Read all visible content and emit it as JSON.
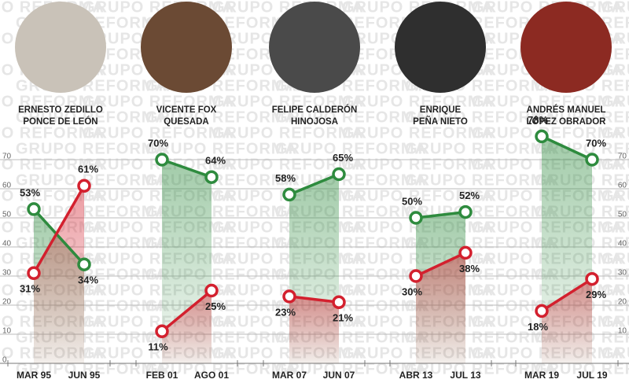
{
  "watermark": "GRUPO REFORMA",
  "chart_data": [
    {
      "type": "line",
      "title_lines": [
        "ERNESTO ZEDILLO",
        "PONCE DE LEÓN"
      ],
      "categories": [
        "MAR 95",
        "JUN 95"
      ],
      "series": [
        {
          "color": "#2e8b3e",
          "values": [
            53,
            34
          ],
          "value_labels": [
            "53%",
            "34%"
          ]
        },
        {
          "color": "#d3202e",
          "values": [
            31,
            61
          ],
          "value_labels": [
            "31%",
            "61%"
          ]
        }
      ],
      "ylim": [
        0,
        80
      ],
      "yticks": [
        0,
        10,
        20,
        30,
        40,
        50,
        60,
        70
      ],
      "grid": true
    },
    {
      "type": "line",
      "title_lines": [
        "VICENTE FOX",
        "QUESADA"
      ],
      "categories": [
        "FEB 01",
        "AGO 01"
      ],
      "series": [
        {
          "color": "#2e8b3e",
          "values": [
            70,
            64
          ],
          "value_labels": [
            "70%",
            "64%"
          ]
        },
        {
          "color": "#d3202e",
          "values": [
            11,
            25
          ],
          "value_labels": [
            "11%",
            "25%"
          ]
        }
      ],
      "ylim": [
        0,
        80
      ]
    },
    {
      "type": "line",
      "title_lines": [
        "FELIPE CALDERÓN",
        "HINOJOSA"
      ],
      "categories": [
        "MAR 07",
        "JUN 07"
      ],
      "series": [
        {
          "color": "#2e8b3e",
          "values": [
            58,
            65
          ],
          "value_labels": [
            "58%",
            "65%"
          ]
        },
        {
          "color": "#d3202e",
          "values": [
            23,
            21
          ],
          "value_labels": [
            "23%",
            "21%"
          ]
        }
      ],
      "ylim": [
        0,
        80
      ]
    },
    {
      "type": "line",
      "title_lines": [
        "ENRIQUE",
        "PEÑA NIETO"
      ],
      "categories": [
        "ABR 13",
        "JUL 13"
      ],
      "series": [
        {
          "color": "#2e8b3e",
          "values": [
            50,
            52
          ],
          "value_labels": [
            "50%",
            "52%"
          ]
        },
        {
          "color": "#d3202e",
          "values": [
            30,
            38
          ],
          "value_labels": [
            "30%",
            "38%"
          ]
        }
      ],
      "ylim": [
        0,
        80
      ]
    },
    {
      "type": "line",
      "title_lines": [
        "ANDRÉS MANUEL",
        "LÓPEZ OBRADOR"
      ],
      "categories": [
        "MAR 19",
        "JUL 19"
      ],
      "series": [
        {
          "color": "#2e8b3e",
          "values": [
            78,
            70
          ],
          "value_labels": [
            "78%",
            "70%"
          ]
        },
        {
          "color": "#d3202e",
          "values": [
            18,
            29
          ],
          "value_labels": [
            "18%",
            "29%"
          ]
        }
      ],
      "ylim": [
        0,
        80
      ],
      "yticks": [
        10,
        20,
        30,
        40,
        50,
        60,
        70
      ]
    }
  ]
}
